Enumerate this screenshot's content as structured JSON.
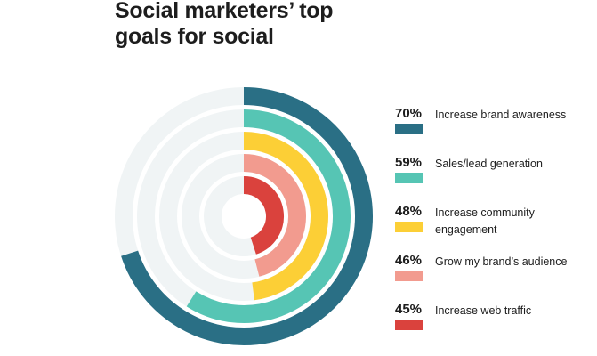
{
  "chart_data": {
    "type": "radial-bar",
    "title": "Social marketers’ top goals for social",
    "track_color": "#f0f4f5",
    "series": [
      {
        "name": "Increase brand awareness",
        "value": 70,
        "label": "70%",
        "color": "#2a6f85"
      },
      {
        "name": "Sales/lead generation",
        "value": 59,
        "label": "59%",
        "color": "#56c5b4"
      },
      {
        "name": "Increase community engagement",
        "value": 48,
        "label": "48%",
        "color": "#fccf36"
      },
      {
        "name": "Grow my brand’s audience",
        "value": 46,
        "label": "46%",
        "color": "#f29b8f"
      },
      {
        "name": "Increase web traffic",
        "value": 45,
        "label": "45%",
        "color": "#da423d"
      }
    ],
    "legend": "right",
    "range": [
      0,
      100
    ]
  }
}
